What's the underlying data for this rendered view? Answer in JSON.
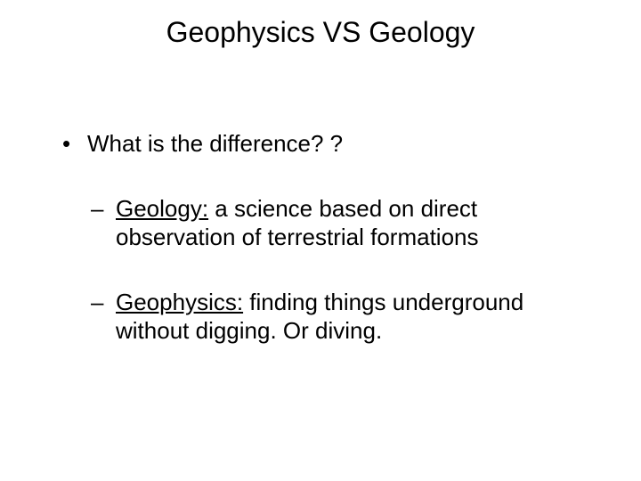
{
  "title": "Geophysics VS Geology",
  "bullets": {
    "q": "What is the difference? ?",
    "geology_label": "Geology:",
    "geology_text": " a science based on direct observation of terrestrial formations",
    "geophysics_label": "Geophysics:",
    "geophysics_text": " finding things underground without digging. Or diving."
  },
  "style": {
    "background_color": "#ffffff",
    "text_color": "#000000",
    "title_fontsize": 32,
    "body_fontsize": 26,
    "font_family": "Arial"
  }
}
